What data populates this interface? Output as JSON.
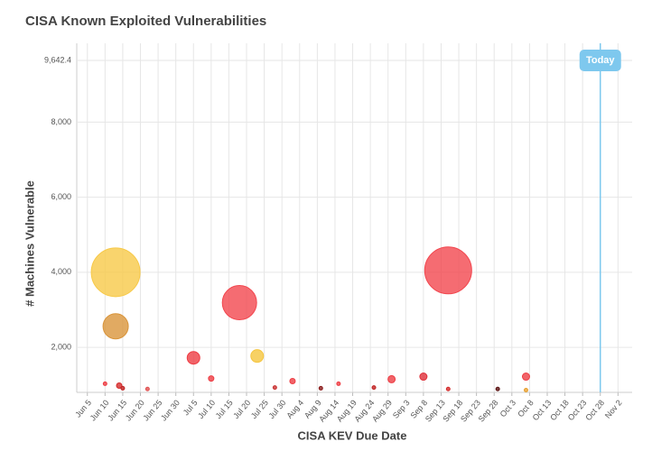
{
  "chart_data": {
    "type": "bubble",
    "title": "CISA Known Exploited Vulnerabilities",
    "x_label": "CISA KEV Due Date",
    "y_label": "# Machines Vulnerable",
    "x": [
      "Jun 13",
      "Jun 13",
      "Jul 18",
      "Sep 15",
      "Jul 5",
      "Jul 23",
      "Jul 10",
      "Aug 30",
      "Sep 8",
      "Oct 7",
      "Aug 2",
      "Jun 10",
      "Jun 14",
      "Jun 15",
      "Jun 22",
      "Jul 28",
      "Aug 10",
      "Aug 15",
      "Aug 25",
      "Sep 15",
      "Sep 29",
      "Oct 7"
    ],
    "values": [
      4000,
      2560,
      3190,
      4050,
      1720,
      1770,
      1170,
      1150,
      1220,
      1220,
      1100,
      1030,
      980,
      910,
      890,
      930,
      910,
      1030,
      930,
      890,
      890,
      860
    ],
    "sizes": [
      27,
      14,
      19,
      26,
      7,
      7,
      3,
      4,
      4,
      4,
      3,
      2,
      3,
      2,
      2,
      2,
      2,
      2,
      2,
      2,
      2,
      2
    ],
    "colors": [
      "#f7c948",
      "#d9953b",
      "#f2474f",
      "#f2474f",
      "#ee3d44",
      "#f5c53e",
      "#ee3d44",
      "#ee3d44",
      "#e0303a",
      "#ee3d44",
      "#ee3d44",
      "#ee3d44",
      "#d42a2a",
      "#c02222",
      "#e05050",
      "#c83030",
      "#8a1a1a",
      "#ee3d44",
      "#c02222",
      "#d42a2a",
      "#5a1010",
      "#e8a030"
    ],
    "xlim": [
      "Jun 2",
      "Nov 6"
    ],
    "xticks": [
      "Jun 5",
      "Jun 10",
      "Jun 15",
      "Jun 20",
      "Jun 25",
      "Jun 30",
      "Jul 5",
      "Jul 10",
      "Jul 15",
      "Jul 20",
      "Jul 25",
      "Jul 30",
      "Aug 4",
      "Aug 9",
      "Aug 14",
      "Aug 19",
      "Aug 24",
      "Aug 29",
      "Sep 3",
      "Sep 8",
      "Sep 13",
      "Sep 18",
      "Sep 23",
      "Sep 28",
      "Oct 3",
      "Oct 8",
      "Oct 13",
      "Oct 18",
      "Oct 23",
      "Oct 28",
      "Nov 2"
    ],
    "ylim": [
      800,
      10100
    ],
    "yticks": [
      {
        "value": 2000,
        "label": "2,000"
      },
      {
        "value": 4000,
        "label": "4,000"
      },
      {
        "value": 6000,
        "label": "6,000"
      },
      {
        "value": 8000,
        "label": "8,000"
      },
      {
        "value": 9642.4,
        "label": "9,642.4"
      }
    ],
    "today_line": {
      "label": "Today",
      "x": "Oct 28",
      "color": "#7ec8ee"
    },
    "grid": true
  }
}
